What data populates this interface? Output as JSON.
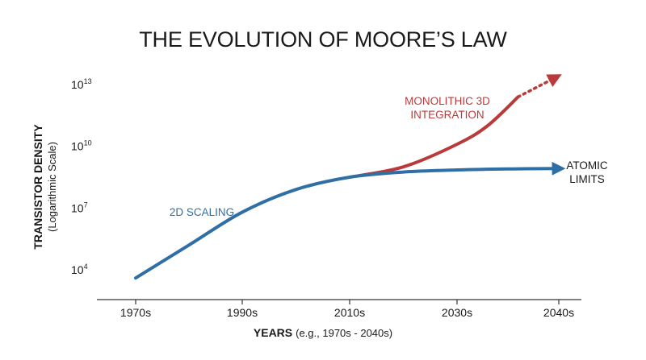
{
  "chart_data": {
    "type": "line",
    "title": "THE EVOLUTION OF MOORE’S LAW",
    "xlabel": {
      "main": "YEARS",
      "note": "(e.g., 1970s - 2040s)"
    },
    "ylabel": {
      "main": "TRANSISTOR DENSITY",
      "note": "(Logarithmic Scale)"
    },
    "y_scale": "log",
    "x_ticks": [
      "1970s",
      "1990s",
      "2010s",
      "2030s",
      "2040s"
    ],
    "y_ticks": [
      {
        "base": "10",
        "exp": "4",
        "value": 10000
      },
      {
        "base": "10",
        "exp": "7",
        "value": 10000000
      },
      {
        "base": "10",
        "exp": "10",
        "value": 10000000000
      },
      {
        "base": "10",
        "exp": "13",
        "value": 10000000000000
      }
    ],
    "series": [
      {
        "name": "2D SCALING",
        "color": "#2f6fa6",
        "x": [
          0,
          0.5,
          1.0,
          1.5,
          2.0,
          2.5,
          3.0,
          3.5,
          4.0
        ],
        "log10_y": [
          3.6,
          5.2,
          6.8,
          7.9,
          8.5,
          8.75,
          8.85,
          8.9,
          8.92
        ],
        "end_label": "ATOMIC LIMITS",
        "end_label_lines": [
          "ATOMIC",
          "LIMITS"
        ]
      },
      {
        "name": "MONOLITHIC 3D INTEGRATION",
        "name_lines": [
          "MONOLITHIC 3D",
          "INTEGRATION"
        ],
        "color": "#b93a3a",
        "x": [
          2.0,
          2.5,
          3.0,
          3.3,
          3.6
        ],
        "log10_y": [
          8.5,
          9.0,
          10.1,
          11.0,
          12.4
        ],
        "projection": {
          "x": [
            3.6,
            4.0
          ],
          "log10_y": [
            12.4,
            13.5
          ],
          "style": "dotted"
        }
      }
    ],
    "grid": false,
    "legend": "none (inline labels)"
  }
}
